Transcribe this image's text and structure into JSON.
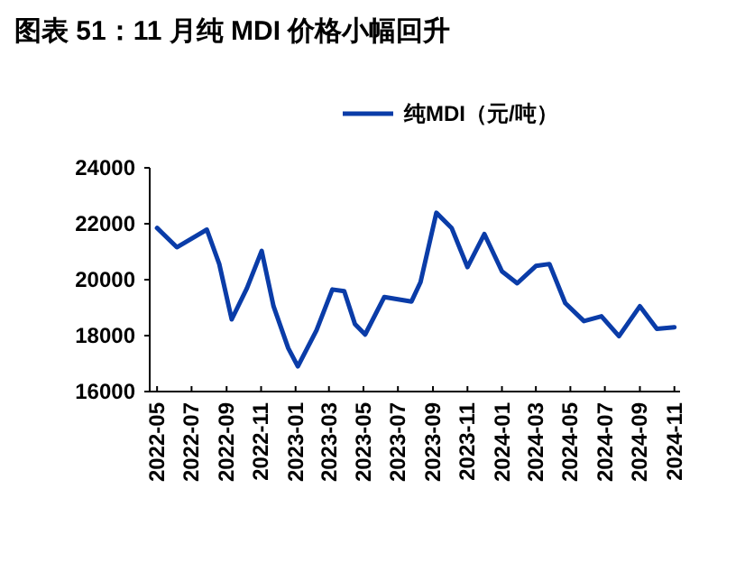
{
  "chart_data": {
    "type": "line",
    "title": "图表 51：11 月纯 MDI 价格小幅回升",
    "x": [
      "2022-05-01",
      "2022-06-05",
      "2022-07-28",
      "2022-08-19",
      "2022-09-10",
      "2022-10-07",
      "2022-11-02",
      "2022-11-23",
      "2022-12-19",
      "2023-01-05",
      "2023-02-07",
      "2023-03-07",
      "2023-03-28",
      "2023-04-16",
      "2023-05-04",
      "2023-06-07",
      "2023-07-25",
      "2023-08-10",
      "2023-09-07",
      "2023-10-04",
      "2023-11-01",
      "2023-12-01",
      "2024-01-01",
      "2024-01-28",
      "2024-03-01",
      "2024-03-25",
      "2024-04-22",
      "2024-05-25",
      "2024-06-25",
      "2024-07-26",
      "2024-09-01",
      "2024-10-01",
      "2024-11-01"
    ],
    "series": [
      {
        "name": "纯MDI（元/吨）",
        "color": "#0a3ca8",
        "values": [
          21850,
          21160,
          21790,
          20560,
          18580,
          19700,
          21030,
          19050,
          17550,
          16900,
          18190,
          19650,
          19590,
          18410,
          18040,
          19380,
          19220,
          19910,
          22390,
          21850,
          20450,
          21630,
          20300,
          19870,
          20490,
          20560,
          19160,
          18520,
          18690,
          17980,
          19050,
          18240,
          18300
        ]
      }
    ],
    "xlim": [
      "2022-04-18",
      "2024-11-11"
    ],
    "xticks": [
      "2022-05",
      "2022-07",
      "2022-09",
      "2022-11",
      "2023-01",
      "2023-03",
      "2023-05",
      "2023-07",
      "2023-09",
      "2023-11",
      "2024-01",
      "2024-03",
      "2024-05",
      "2024-07",
      "2024-09",
      "2024-11"
    ],
    "ylim": [
      16000,
      24000
    ],
    "yticks": [
      16000,
      18000,
      20000,
      22000,
      24000
    ],
    "grid": false,
    "legend": "top",
    "marker": "none",
    "line_style": "solid"
  }
}
